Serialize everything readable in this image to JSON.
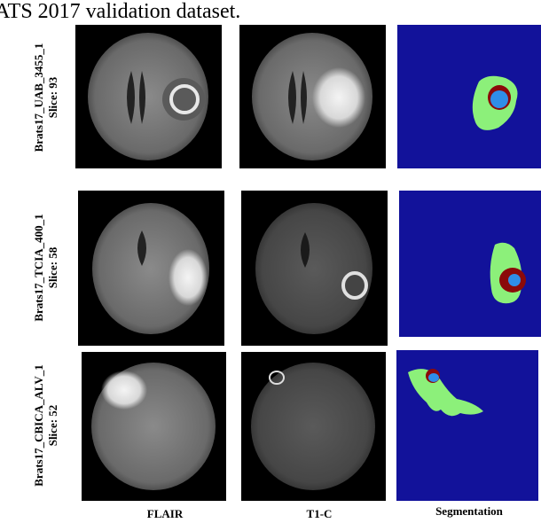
{
  "caption": "ATS 2017 validation dataset.",
  "rows": [
    {
      "case": "Brats17_UAB_3455_1",
      "slice": "Slice: 93"
    },
    {
      "case": "Brats17_TCIA_400_1",
      "slice": "Slice: 58"
    },
    {
      "case": "Brats17_CBICA_ALV_1",
      "slice": "Slice: 52"
    }
  ],
  "columns": [
    "FLAIR",
    "T1-C",
    "Segmentation"
  ]
}
